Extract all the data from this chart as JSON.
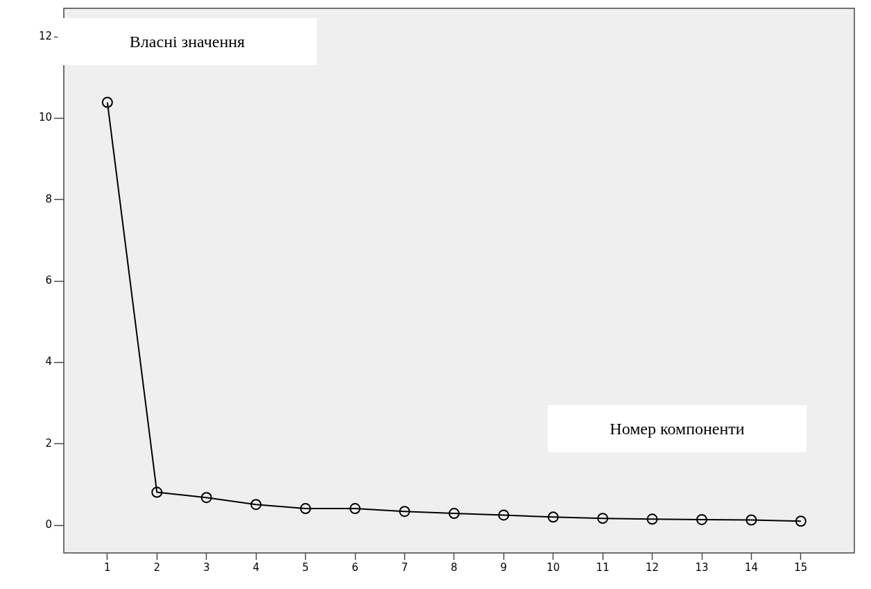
{
  "chart_data": {
    "type": "line",
    "xlabel": "Номер компоненти",
    "ylabel": "Власні значення",
    "x": [
      1,
      2,
      3,
      4,
      5,
      6,
      7,
      8,
      9,
      10,
      11,
      12,
      13,
      14,
      15
    ],
    "values": [
      10.39,
      0.81,
      0.68,
      0.51,
      0.41,
      0.41,
      0.34,
      0.29,
      0.25,
      0.2,
      0.17,
      0.15,
      0.14,
      0.13,
      0.1
    ],
    "color": "#000000",
    "marker": "circle",
    "line_style": "solid",
    "grid": false,
    "legend": false,
    "xlim": [
      0.12,
      16.08
    ],
    "xticks": [
      1,
      2,
      3,
      4,
      5,
      6,
      7,
      8,
      9,
      10,
      11,
      12,
      13,
      14,
      15
    ],
    "ylim": [
      -0.68,
      12.7
    ],
    "yticks": [
      0,
      2,
      4,
      6,
      8,
      10,
      12
    ]
  }
}
